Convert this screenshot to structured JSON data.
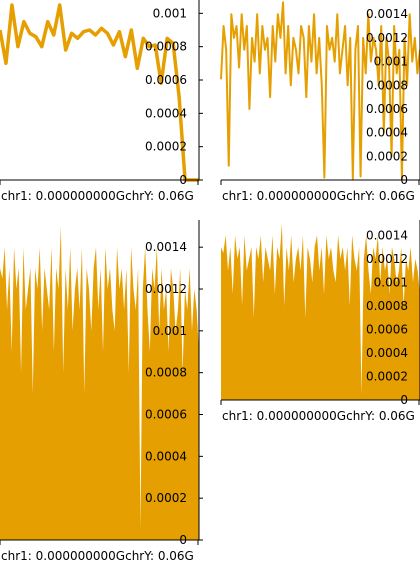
{
  "chart_data": [
    {
      "type": "line",
      "panel": "top-left",
      "xlabel": "chr1: 0.000000000GchrY: 0.06G",
      "ylim": [
        0,
        0.00108
      ],
      "yticks": [
        {
          "value": 0.001,
          "label": "0.001"
        },
        {
          "value": 0.0008,
          "label": "0.0008"
        },
        {
          "value": 0.0006,
          "label": "0.0006"
        },
        {
          "value": 0.0004,
          "label": "0.0004"
        },
        {
          "value": 0.0002,
          "label": "0.0002"
        },
        {
          "value": 0,
          "label": "0"
        }
      ],
      "x": [
        0,
        3,
        6,
        9,
        12,
        15,
        18,
        21,
        24,
        27,
        30,
        33,
        36,
        39,
        42,
        45,
        48,
        51,
        54,
        57,
        60,
        63,
        66,
        69,
        72,
        75,
        78,
        81,
        84,
        87,
        90,
        93,
        96,
        99,
        100
      ],
      "values": [
        0.0009,
        0.0007,
        0.00105,
        0.0008,
        0.00095,
        0.00088,
        0.00086,
        0.0008,
        0.00095,
        0.00087,
        0.00105,
        0.00078,
        0.00088,
        0.00085,
        0.00089,
        0.0009,
        0.00087,
        0.00091,
        0.00088,
        0.00081,
        0.00089,
        0.00074,
        0.0009,
        0.00067,
        0.00085,
        0.0008,
        0.00081,
        0.00058,
        0.00085,
        0.00082,
        0.0005,
        0.0,
        0.0,
        0.0,
        0.0
      ],
      "grid": false,
      "color": "#E69F00"
    },
    {
      "type": "line",
      "panel": "top-right",
      "xlabel": "chr1: 0.000000000GchrY: 0.06G",
      "ylim": [
        0,
        0.00152
      ],
      "yticks": [
        {
          "value": 0.0014,
          "label": "0.0014"
        },
        {
          "value": 0.0012,
          "label": "0.0012"
        },
        {
          "value": 0.001,
          "label": "0.001"
        },
        {
          "value": 0.0008,
          "label": "0.0008"
        },
        {
          "value": 0.0006,
          "label": "0.0006"
        },
        {
          "value": 0.0004,
          "label": "0.0004"
        },
        {
          "value": 0.0002,
          "label": "0.0002"
        },
        {
          "value": 0,
          "label": "0"
        }
      ],
      "values": [
        0.00085,
        0.0013,
        0.0011,
        0.00012,
        0.0014,
        0.0012,
        0.0013,
        0.00095,
        0.0014,
        0.0011,
        0.0013,
        0.0006,
        0.0012,
        0.001,
        0.0014,
        0.0009,
        0.0013,
        0.0011,
        0.0012,
        0.0007,
        0.0013,
        0.001,
        0.0014,
        0.0012,
        0.0015,
        0.0009,
        0.0013,
        0.0008,
        0.0012,
        0.0011,
        0.0009,
        0.0013,
        0.0012,
        0.0007,
        0.0013,
        0.001,
        0.0014,
        0.0009,
        0.0012,
        0.0008,
        2e-05,
        0.0013,
        0.0011,
        0.0012,
        0.001,
        0.0014,
        0.0009,
        0.0011,
        0.0013,
        0.0008,
        0.0012,
        1e-05,
        0.0011,
        0.0013,
        3e-05,
        0.0012,
        0.0009,
        0.0014,
        0.001,
        0.0012,
        0.0011,
        0.0008,
        0.0013,
        0.0004,
        0.0012,
        0.001,
        0.0002,
        0.0013,
        0.0009,
        0.0011,
        1e-05,
        0.0012,
        0.0008,
        0.0014,
        0.001,
        0.0012,
        0.0009,
        0.0011
      ],
      "grid": false,
      "color": "#E69F00"
    },
    {
      "type": "area",
      "panel": "bottom-left",
      "xlabel": "chr1: 0.000000000GchrY: 0.06G",
      "ylim": [
        0,
        0.00153
      ],
      "yticks": [
        {
          "value": 0.0014,
          "label": "0.0014"
        },
        {
          "value": 0.0012,
          "label": "0.0012"
        },
        {
          "value": 0.001,
          "label": "0.001"
        },
        {
          "value": 0.0008,
          "label": "0.0008"
        },
        {
          "value": 0.0006,
          "label": "0.0006"
        },
        {
          "value": 0.0004,
          "label": "0.0004"
        },
        {
          "value": 0.0002,
          "label": "0.0002"
        },
        {
          "value": 0,
          "label": "0"
        }
      ],
      "values": [
        0.0013,
        0.00125,
        0.0014,
        0.0011,
        0.0013,
        0.0009,
        0.0014,
        0.0012,
        0.0013,
        0.0008,
        0.0014,
        0.0011,
        0.0012,
        0.0013,
        0.0007,
        0.0013,
        0.0012,
        0.0014,
        0.001,
        0.0013,
        0.0012,
        0.0011,
        0.0014,
        0.0009,
        0.0013,
        0.0012,
        0.0015,
        0.0008,
        0.0013,
        0.0011,
        0.0014,
        0.001,
        0.0012,
        0.0013,
        0.0011,
        0.0014,
        0.0007,
        0.0013,
        0.0012,
        0.001,
        0.0013,
        0.0014,
        0.0011,
        0.0013,
        0.0009,
        0.0014,
        0.0012,
        0.0013,
        0.0011,
        0.001,
        0.0014,
        0.0012,
        0.0013,
        0.0011,
        0.0013,
        0.0008,
        0.0014,
        0.0012,
        0.0011,
        0.0013,
        5e-05,
        0.0012,
        0.0014,
        0.0011,
        0.0009,
        0.0013,
        0.0012,
        0.0014,
        0.001,
        0.0013,
        0.0011,
        0.0012,
        0.0009,
        0.0013,
        0.0012,
        0.001,
        0.0011,
        0.0013,
        0.0008,
        0.0012,
        0.0011,
        0.0013,
        0.001,
        0.0012,
        0.0011,
        0.0009
      ],
      "grid": false,
      "color": "#E69F00"
    },
    {
      "type": "area",
      "panel": "bottom-right",
      "xlabel": "chr1: 0.000000000GchrY: 0.06G",
      "ylim": [
        0,
        0.00153
      ],
      "yticks": [
        {
          "value": 0.0014,
          "label": "0.0014"
        },
        {
          "value": 0.0012,
          "label": "0.0012"
        },
        {
          "value": 0.001,
          "label": "0.001"
        },
        {
          "value": 0.0008,
          "label": "0.0008"
        },
        {
          "value": 0.0006,
          "label": "0.0006"
        },
        {
          "value": 0.0004,
          "label": "0.0004"
        },
        {
          "value": 0.0002,
          "label": "0.0002"
        },
        {
          "value": 0,
          "label": "0"
        }
      ],
      "values": [
        0.0013,
        0.00125,
        0.0014,
        0.0011,
        0.0013,
        0.0009,
        0.0014,
        0.0012,
        0.0013,
        0.0008,
        0.0014,
        0.0011,
        0.0012,
        0.0013,
        0.0007,
        0.0013,
        0.0012,
        0.0014,
        0.001,
        0.0013,
        0.0012,
        0.0011,
        0.0014,
        0.0009,
        0.0013,
        0.0012,
        0.0015,
        0.0008,
        0.0013,
        0.0011,
        0.0014,
        0.001,
        0.0012,
        0.0013,
        0.0011,
        0.0014,
        0.0007,
        0.0013,
        0.0012,
        0.001,
        0.0013,
        0.0014,
        0.0011,
        0.0013,
        0.0009,
        0.0014,
        0.0012,
        0.0013,
        0.0011,
        0.001,
        0.0014,
        0.0012,
        0.0013,
        0.0011,
        0.0013,
        0.0008,
        0.0014,
        0.0012,
        0.0011,
        0.0013,
        5e-05,
        0.0012,
        0.0014,
        0.0011,
        0.0009,
        0.0013,
        0.0012,
        0.0014,
        0.001,
        0.0013,
        0.0011,
        0.0012,
        0.0009,
        0.0013,
        0.0012,
        0.001,
        0.0011,
        0.0013,
        0.0008,
        0.0012,
        0.0011,
        0.0013,
        0.001,
        0.0012,
        0.0011,
        0.0009
      ],
      "grid": false,
      "color": "#E69F00"
    }
  ]
}
